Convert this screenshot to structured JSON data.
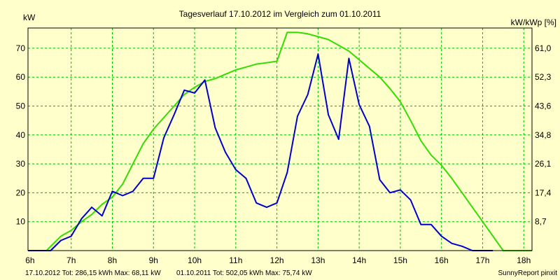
{
  "chart_data": {
    "type": "line",
    "title": "Tagesverlauf 17.10.2012 im Vergleich zum 01.10.2011",
    "ylabel_left": "kW",
    "ylabel_right": "kW/kWp [%]",
    "x_ticks": [
      "6h",
      "7h",
      "8h",
      "9h",
      "10h",
      "11h",
      "12h",
      "13h",
      "14h",
      "15h",
      "16h",
      "17h",
      "18h"
    ],
    "y_ticks_left": [
      "10",
      "20",
      "30",
      "40",
      "50",
      "60",
      "70"
    ],
    "y_ticks_left_values": [
      10,
      20,
      30,
      40,
      50,
      60,
      70
    ],
    "y_ticks_right": [
      "8,7",
      "17,4",
      "26,1",
      "34,8",
      "43,6",
      "52,3",
      "61,0"
    ],
    "xlim": [
      5.95,
      18.2
    ],
    "ylim": [
      0,
      77
    ],
    "grid": true,
    "series": [
      {
        "name": "17.10.2012",
        "color": "#0000cc",
        "x": [
          5.95,
          6.5,
          6.75,
          7.0,
          7.25,
          7.5,
          7.75,
          8.0,
          8.25,
          8.5,
          8.75,
          9.0,
          9.25,
          9.5,
          9.75,
          10.0,
          10.25,
          10.5,
          10.75,
          11.0,
          11.25,
          11.5,
          11.75,
          12.0,
          12.25,
          12.5,
          12.75,
          13.0,
          13.25,
          13.5,
          13.75,
          14.0,
          14.25,
          14.5,
          14.75,
          15.0,
          15.25,
          15.5,
          15.75,
          16.0,
          16.25,
          16.5,
          16.75,
          17.0,
          17.25
        ],
        "values": [
          0,
          0,
          3.5,
          5,
          11,
          15,
          12,
          20.5,
          19,
          20.5,
          25,
          25,
          39,
          47,
          55.5,
          54.5,
          59,
          42.5,
          34,
          28,
          25,
          16.5,
          15,
          16.5,
          27,
          46.5,
          54,
          68,
          47,
          38.5,
          66.5,
          50.5,
          43,
          24.5,
          20,
          21,
          17.5,
          9,
          9,
          5,
          2.5,
          1.5,
          0,
          0,
          0
        ]
      },
      {
        "name": "01.10.2011",
        "color": "#33dd00",
        "x": [
          5.95,
          6.4,
          6.75,
          7.0,
          7.25,
          7.5,
          7.75,
          8.0,
          8.25,
          8.5,
          8.75,
          9.0,
          9.25,
          9.5,
          9.75,
          10.0,
          10.25,
          10.5,
          10.75,
          11.0,
          11.25,
          11.5,
          11.75,
          12.0,
          12.25,
          12.5,
          12.75,
          13.0,
          13.25,
          13.5,
          13.75,
          14.0,
          14.25,
          14.5,
          14.75,
          15.0,
          15.25,
          15.5,
          15.75,
          16.0,
          16.25,
          16.5,
          16.75,
          17.0,
          17.25,
          17.5,
          17.75,
          18.0,
          18.2
        ],
        "values": [
          0,
          0,
          5,
          7,
          10,
          12.5,
          16,
          18.5,
          23,
          30,
          37,
          42,
          46,
          50,
          54,
          56.5,
          58.5,
          59.5,
          61,
          62.5,
          63.5,
          64.5,
          65,
          65.5,
          75.5,
          75.5,
          75,
          74,
          73,
          71,
          69,
          66,
          63,
          60,
          56,
          51.5,
          45,
          38,
          33,
          29.5,
          25,
          20,
          15,
          10,
          5,
          0,
          0,
          0,
          0
        ]
      }
    ],
    "footer": {
      "series1": "17.10.2012 Tot: 286,15 kWh Max: 68,11 kW",
      "series2": "01.10.2011 Tot: 502,05 kWh Max: 75,74 kW",
      "brand": "SunnyReport pinxit"
    }
  },
  "colors": {
    "background": "#ffffcc",
    "grid": "#00bb00",
    "axis": "#000000"
  }
}
